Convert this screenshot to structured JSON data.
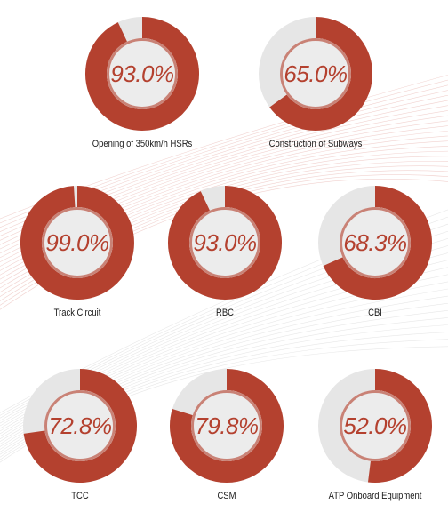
{
  "colors": {
    "accent": "#b4412f",
    "track": "#e6e6e6",
    "inner": "#ececec",
    "ring": "#c98276"
  },
  "chart_data": {
    "type": "pie",
    "items": [
      {
        "label": "Opening of 350km/h HSRs",
        "value": 93.0,
        "display": "93.0%"
      },
      {
        "label": "Construction of Subways",
        "value": 65.0,
        "display": "65.0%"
      },
      {
        "label": "Track Circuit",
        "value": 99.0,
        "display": "99.0%"
      },
      {
        "label": "RBC",
        "value": 93.0,
        "display": "93.0%"
      },
      {
        "label": "CBI",
        "value": 68.3,
        "display": "68.3%"
      },
      {
        "label": "TCC",
        "value": 72.8,
        "display": "72.8%"
      },
      {
        "label": "CSM",
        "value": 79.8,
        "display": "79.8%"
      },
      {
        "label": "ATP Onboard Equipment",
        "value": 52.0,
        "display": "52.0%"
      }
    ]
  }
}
